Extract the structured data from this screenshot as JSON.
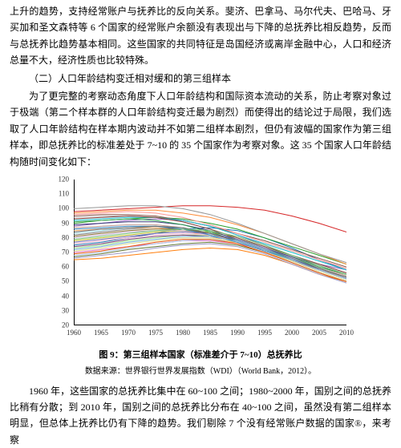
{
  "para1": "上升的趋势，支持经常账户与抚养比的反向关系。斐济、巴拿马、马尔代夫、巴哈马、牙买加和圣文森特等 6 个国家的经常账户余额没有表现出与下降的总抚养比相反趋势，反而与总抚养比趋势基本相同。这些国家的共同特征是岛国经济或离岸金融中心，人口和经济总量不大，经济性质也比较特殊。",
  "section_title": "（二）人口年龄结构变迁相对缓和的第三组样本",
  "para2": "为了更完整的考察动态角度下人口年龄结构和国际资本流动的关系，防止考察对象过于极端（第二个样本群的人口年龄结构变迁最为剧烈）而使得出的结论过于局限，我们选取了人口年龄结构在样本期内波动并不如第二组样本剧烈，但仍有波幅的国家作为第三组样本，即总抚养比的标准差处于 7~10 的 35 个国家作为考察对象。这 35 个国家人口年龄结构随时间变化如下：",
  "chart": {
    "y_ticks": [
      20,
      30,
      40,
      50,
      60,
      70,
      80,
      90,
      100,
      110,
      120
    ],
    "ylim": [
      20,
      120
    ],
    "x_ticks": [
      1960,
      1965,
      1970,
      1975,
      1980,
      1985,
      1990,
      1995,
      2000,
      2005,
      2010
    ],
    "xlim": [
      1960,
      2010
    ],
    "caption": "图 9：第三组样本国家（标准差介于 7~10）总抚养比",
    "source": "数据来源：世界银行世界发展指数（WDI）（World Bank，2012）。",
    "line_colors": [
      "#d62728",
      "#1f77b4",
      "#2ca02c",
      "#ff7f0e",
      "#9467bd",
      "#8c564b",
      "#e377c2",
      "#7f7f7f",
      "#bcbd22",
      "#17becf",
      "#aec7e8",
      "#ffbb78",
      "#98df8a",
      "#ff9896",
      "#c5b0d5",
      "#c49c94",
      "#f7b6d2",
      "#c7c7c7",
      "#dbdb8d",
      "#9edae5",
      "#393b79",
      "#637939",
      "#8c6d31",
      "#843c39",
      "#7b4173",
      "#3182bd",
      "#e6550d",
      "#31a354",
      "#756bb1",
      "#636363",
      "#6baed6",
      "#fd8d3c",
      "#74c476",
      "#9e9ac8",
      "#969696"
    ],
    "series": [
      [
        98,
        99,
        100,
        101,
        102,
        102,
        101,
        99,
        95,
        90,
        84
      ],
      [
        75,
        77,
        80,
        83,
        86,
        87,
        85,
        80,
        73,
        65,
        58
      ],
      [
        90,
        92,
        93,
        94,
        93,
        90,
        86,
        80,
        74,
        68,
        62
      ],
      [
        65,
        66,
        68,
        70,
        72,
        73,
        72,
        68,
        62,
        55,
        50
      ],
      [
        88,
        90,
        92,
        93,
        92,
        88,
        82,
        75,
        68,
        62,
        58
      ],
      [
        95,
        96,
        96,
        95,
        92,
        88,
        83,
        78,
        72,
        66,
        60
      ],
      [
        70,
        72,
        74,
        76,
        78,
        78,
        76,
        72,
        66,
        60,
        54
      ],
      [
        82,
        84,
        86,
        87,
        86,
        83,
        78,
        72,
        66,
        60,
        55
      ],
      [
        78,
        80,
        82,
        84,
        85,
        84,
        80,
        74,
        67,
        60,
        54
      ],
      [
        92,
        93,
        94,
        94,
        92,
        88,
        82,
        76,
        70,
        64,
        58
      ],
      [
        68,
        70,
        73,
        76,
        78,
        79,
        77,
        72,
        65,
        58,
        52
      ],
      [
        85,
        86,
        87,
        87,
        85,
        81,
        76,
        70,
        64,
        58,
        53
      ],
      [
        73,
        75,
        78,
        80,
        82,
        82,
        79,
        74,
        67,
        60,
        54
      ],
      [
        96,
        97,
        98,
        97,
        94,
        89,
        83,
        77,
        71,
        65,
        59
      ],
      [
        80,
        82,
        84,
        85,
        85,
        82,
        77,
        71,
        64,
        58,
        52
      ],
      [
        87,
        88,
        89,
        89,
        87,
        83,
        78,
        72,
        66,
        60,
        54
      ],
      [
        76,
        78,
        80,
        82,
        83,
        82,
        78,
        72,
        65,
        58,
        52
      ],
      [
        94,
        95,
        95,
        94,
        91,
        86,
        80,
        74,
        68,
        62,
        56
      ],
      [
        71,
        73,
        76,
        78,
        80,
        80,
        77,
        71,
        64,
        57,
        51
      ],
      [
        83,
        85,
        87,
        88,
        87,
        83,
        78,
        72,
        65,
        59,
        53
      ],
      [
        89,
        90,
        91,
        91,
        89,
        85,
        79,
        73,
        67,
        61,
        55
      ],
      [
        67,
        69,
        72,
        74,
        76,
        77,
        75,
        70,
        63,
        56,
        50
      ],
      [
        81,
        83,
        85,
        86,
        86,
        83,
        78,
        72,
        65,
        59,
        53
      ],
      [
        93,
        94,
        95,
        94,
        91,
        86,
        80,
        74,
        68,
        62,
        56
      ],
      [
        74,
        76,
        79,
        81,
        82,
        81,
        78,
        72,
        65,
        58,
        52
      ],
      [
        86,
        87,
        88,
        88,
        86,
        82,
        77,
        71,
        65,
        59,
        53
      ],
      [
        69,
        71,
        74,
        77,
        79,
        79,
        76,
        70,
        63,
        56,
        50
      ],
      [
        91,
        92,
        93,
        92,
        89,
        84,
        78,
        72,
        66,
        60,
        55
      ],
      [
        77,
        79,
        81,
        83,
        84,
        83,
        79,
        73,
        66,
        59,
        53
      ],
      [
        84,
        86,
        87,
        88,
        87,
        83,
        78,
        72,
        65,
        59,
        53
      ],
      [
        72,
        74,
        77,
        79,
        81,
        81,
        78,
        72,
        65,
        58,
        52
      ],
      [
        97,
        98,
        99,
        99,
        97,
        94,
        89,
        83,
        76,
        69,
        62
      ],
      [
        79,
        81,
        83,
        85,
        86,
        85,
        81,
        75,
        68,
        61,
        55
      ],
      [
        66,
        68,
        70,
        73,
        75,
        76,
        74,
        69,
        62,
        55,
        49
      ],
      [
        100,
        101,
        102,
        102,
        100,
        96,
        90,
        83,
        76,
        69,
        63
      ]
    ]
  },
  "para3": "1960 年，这些国家的总抚养比集中在 60~100 之间；1980~2000 年，国别之间的总抚养比稍有分散；到 2010 年，国别之间的总抚养比分布在 40~100 之间，虽然没有第二组样本明显，但总体上抚养比仍有下降的趋势。我们剔除 7 个没有经常账户数据的国家®，来考察"
}
